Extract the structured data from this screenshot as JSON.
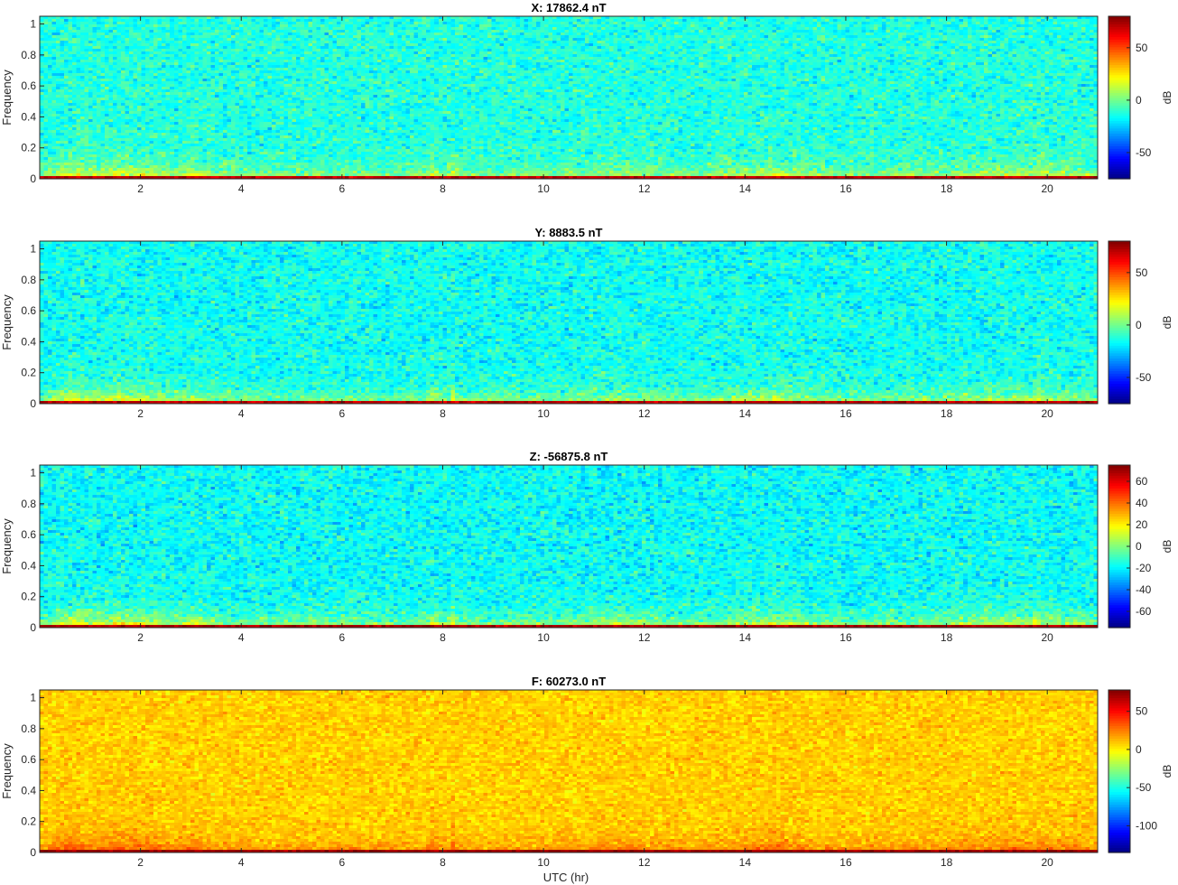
{
  "figure_xlabel": "UTC (hr)",
  "colormap": "jet",
  "chart_data": [
    {
      "type": "heatmap",
      "title": "X: 17862.4 nT",
      "xlabel": "",
      "ylabel": "Frequency",
      "xlim": [
        0,
        21
      ],
      "ylim": [
        0,
        1.05
      ],
      "xticks": [
        2,
        4,
        6,
        8,
        10,
        12,
        14,
        16,
        18,
        20
      ],
      "yticks": [
        0,
        0.2,
        0.4,
        0.6,
        0.8,
        1
      ],
      "colorbar": {
        "label": "dB",
        "range": [
          -75,
          80
        ],
        "ticks": [
          -50,
          0,
          50
        ]
      },
      "background_db": -12,
      "low_freq_db": 25,
      "band_db": 70,
      "noise_db": 11
    },
    {
      "type": "heatmap",
      "title": "Y: 8883.5 nT",
      "xlabel": "",
      "ylabel": "Frequency",
      "xlim": [
        0,
        21
      ],
      "ylim": [
        0,
        1.05
      ],
      "xticks": [
        2,
        4,
        6,
        8,
        10,
        12,
        14,
        16,
        18,
        20
      ],
      "yticks": [
        0,
        0.2,
        0.4,
        0.6,
        0.8,
        1
      ],
      "colorbar": {
        "label": "dB",
        "range": [
          -75,
          80
        ],
        "ticks": [
          -50,
          0,
          50
        ]
      },
      "background_db": -15,
      "low_freq_db": 25,
      "band_db": 70,
      "noise_db": 11
    },
    {
      "type": "heatmap",
      "title": "Z: -56875.8 nT",
      "xlabel": "",
      "ylabel": "Frequency",
      "xlim": [
        0,
        21
      ],
      "ylim": [
        0,
        1.05
      ],
      "xticks": [
        2,
        4,
        6,
        8,
        10,
        12,
        14,
        16,
        18,
        20
      ],
      "yticks": [
        0,
        0.2,
        0.4,
        0.6,
        0.8,
        1
      ],
      "colorbar": {
        "label": "dB",
        "range": [
          -75,
          75
        ],
        "ticks": [
          -60,
          -40,
          -20,
          0,
          20,
          40,
          60
        ]
      },
      "background_db": -18,
      "low_freq_db": 25,
      "band_db": 68,
      "noise_db": 11
    },
    {
      "type": "heatmap",
      "title": "F: 60273.0 nT",
      "xlabel": "UTC (hr)",
      "ylabel": "Frequency",
      "xlim": [
        0,
        21
      ],
      "ylim": [
        0,
        1.05
      ],
      "xticks": [
        2,
        4,
        6,
        8,
        10,
        12,
        14,
        16,
        18,
        20
      ],
      "yticks": [
        0,
        0.2,
        0.4,
        0.6,
        0.8,
        1
      ],
      "colorbar": {
        "label": "dB",
        "range": [
          -135,
          78
        ],
        "ticks": [
          -100,
          -50,
          0,
          50
        ]
      },
      "background_db": 8,
      "low_freq_db": 35,
      "band_db": 70,
      "noise_db": 10
    }
  ]
}
